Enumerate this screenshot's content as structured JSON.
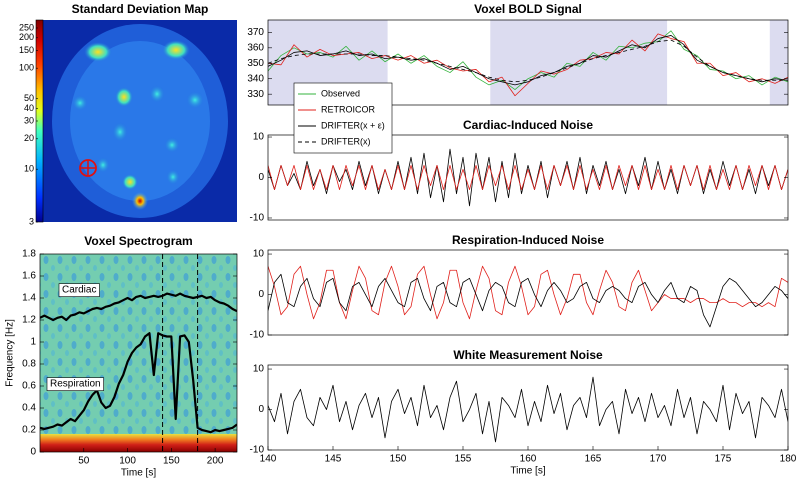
{
  "chart_data": [
    {
      "type": "image",
      "title": "Standard Deviation Map",
      "colorbar": {
        "log_scale": true,
        "clim": [
          3,
          300
        ],
        "cticks": [
          3,
          10,
          20,
          30,
          40,
          50,
          100,
          150,
          200,
          250
        ]
      }
    },
    {
      "type": "spectrogram",
      "title": "Voxel Spectrogram",
      "xlabel": "Time [s]",
      "ylabel": "Frequency [Hz]",
      "xlim": [
        0,
        225
      ],
      "xticks": [
        50,
        100,
        150,
        200
      ],
      "ylim": [
        0,
        1.8
      ],
      "yticks": [
        0,
        0.2,
        0.4,
        0.6,
        0.8,
        1,
        1.2,
        1.4,
        1.6,
        1.8
      ],
      "vlines": [
        140,
        180
      ],
      "x": [
        0,
        5,
        10,
        15,
        20,
        25,
        30,
        35,
        40,
        45,
        50,
        55,
        60,
        65,
        70,
        75,
        80,
        85,
        90,
        95,
        100,
        105,
        110,
        115,
        120,
        125,
        130,
        135,
        140,
        145,
        150,
        155,
        160,
        165,
        170,
        175,
        180,
        185,
        190,
        195,
        200,
        205,
        210,
        215,
        220,
        225
      ],
      "series": [
        {
          "name": "Cardiac",
          "color": "#000000",
          "values": [
            1.22,
            1.24,
            1.22,
            1.2,
            1.22,
            1.23,
            1.2,
            1.24,
            1.25,
            1.27,
            1.26,
            1.28,
            1.3,
            1.31,
            1.3,
            1.32,
            1.33,
            1.35,
            1.36,
            1.38,
            1.4,
            1.38,
            1.41,
            1.42,
            1.4,
            1.41,
            1.42,
            1.41,
            1.42,
            1.44,
            1.43,
            1.42,
            1.44,
            1.42,
            1.41,
            1.4,
            1.41,
            1.42,
            1.4,
            1.41,
            1.38,
            1.36,
            1.35,
            1.33,
            1.3,
            1.28
          ]
        },
        {
          "name": "Respiration",
          "color": "#000000",
          "values": [
            0.22,
            0.21,
            0.22,
            0.23,
            0.25,
            0.24,
            0.27,
            0.3,
            0.28,
            0.33,
            0.38,
            0.46,
            0.52,
            0.56,
            0.45,
            0.4,
            0.42,
            0.5,
            0.62,
            0.7,
            0.82,
            0.9,
            0.95,
            0.98,
            1.05,
            1.08,
            0.7,
            1.08,
            1.06,
            1.05,
            1.05,
            0.3,
            1.05,
            1.06,
            1.0,
            0.65,
            0.22,
            0.2,
            0.19,
            0.18,
            0.2,
            0.19,
            0.2,
            0.21,
            0.22,
            0.25
          ]
        }
      ]
    },
    {
      "type": "line",
      "title": "Voxel BOLD Signal",
      "legend": "lower-left",
      "xlim": [
        140,
        180
      ],
      "ylim": [
        323,
        378
      ],
      "yticks": [
        330,
        340,
        350,
        360,
        370
      ],
      "shaded_spans": [
        [
          140,
          149.2
        ],
        [
          157.1,
          170.7
        ],
        [
          178.6,
          180
        ]
      ],
      "shade_color": "#dcdcf0",
      "x": [
        140,
        141,
        142,
        143,
        144,
        145,
        146,
        147,
        148,
        149,
        150,
        151,
        152,
        153,
        154,
        155,
        156,
        157,
        158,
        159,
        160,
        161,
        162,
        163,
        164,
        165,
        166,
        167,
        168,
        169,
        170,
        171,
        172,
        173,
        174,
        175,
        176,
        177,
        178,
        179,
        180
      ],
      "series": [
        {
          "name": "Observed",
          "color": "#33b33c",
          "values": [
            345,
            355,
            360,
            356,
            357,
            354,
            361,
            352,
            358,
            351,
            356,
            350,
            355,
            348,
            344,
            351,
            341,
            336,
            339,
            333,
            340,
            344,
            341,
            350,
            348,
            357,
            352,
            361,
            360,
            363,
            364,
            371,
            359,
            355,
            346,
            345,
            340,
            342,
            336,
            341,
            338
          ]
        },
        {
          "name": "RETROICOR",
          "color": "#e0201b",
          "values": [
            350,
            349,
            362,
            354,
            359,
            355,
            356,
            357,
            353,
            355,
            352,
            355,
            350,
            352,
            347,
            345,
            346,
            338,
            341,
            329,
            337,
            345,
            343,
            346,
            352,
            353,
            357,
            356,
            365,
            358,
            369,
            366,
            364,
            350,
            350,
            342,
            344,
            338,
            340,
            337,
            341
          ]
        },
        {
          "name": "DRIFTER(x + ε)",
          "color": "#000000",
          "values": [
            348,
            352,
            357,
            358,
            355,
            356,
            358,
            355,
            356,
            353,
            354,
            352,
            353,
            350,
            346,
            348,
            344,
            340,
            338,
            336,
            338,
            342,
            344,
            348,
            350,
            355,
            354,
            358,
            362,
            360,
            366,
            368,
            362,
            352,
            348,
            344,
            342,
            340,
            338,
            340,
            339
          ]
        },
        {
          "name": "DRIFTER(x)",
          "color": "#000000",
          "dash": true,
          "values": [
            350,
            353,
            355,
            356,
            356,
            356,
            356,
            356,
            355,
            355,
            354,
            353,
            352,
            350,
            348,
            346,
            344,
            341,
            339,
            338,
            339,
            341,
            344,
            347,
            350,
            353,
            355,
            357,
            359,
            361,
            364,
            365,
            361,
            354,
            348,
            344,
            342,
            340,
            339,
            339,
            339
          ]
        }
      ]
    },
    {
      "type": "line",
      "title": "Cardiac-Induced Noise",
      "xlim": [
        140,
        180
      ],
      "ylim": [
        -10.5,
        10.5
      ],
      "yticks": [
        -10,
        0,
        10
      ],
      "x": [
        140,
        140.5,
        141,
        141.5,
        142,
        142.5,
        143,
        143.5,
        144,
        144.5,
        145,
        145.5,
        146,
        146.5,
        147,
        147.5,
        148,
        148.5,
        149,
        149.5,
        150,
        150.5,
        151,
        151.5,
        152,
        152.5,
        153,
        153.5,
        154,
        154.5,
        155,
        155.5,
        156,
        156.5,
        157,
        157.5,
        158,
        158.5,
        159,
        159.5,
        160,
        160.5,
        161,
        161.5,
        162,
        162.5,
        163,
        163.5,
        164,
        164.5,
        165,
        165.5,
        166,
        166.5,
        167,
        167.5,
        168,
        168.5,
        169,
        169.5,
        170,
        170.5,
        171,
        171.5,
        172,
        172.5,
        173,
        173.5,
        174,
        174.5,
        175,
        175.5,
        176,
        176.5,
        177,
        177.5,
        178,
        178.5,
        179,
        179.5,
        180
      ],
      "series": [
        {
          "name": "DRIFTER(x + ε)",
          "color": "#000000",
          "values": [
            2,
            -3,
            3,
            -2,
            1,
            -3,
            4,
            -2,
            2,
            -4,
            3,
            -1,
            2,
            -3,
            4,
            -2,
            3,
            -4,
            2,
            -3,
            4,
            -3,
            5,
            -4,
            6,
            -5,
            3,
            -6,
            7,
            -4,
            5,
            -7,
            6,
            -3,
            5,
            -6,
            4,
            -5,
            6,
            -4,
            3,
            -3,
            4,
            -5,
            3,
            -2,
            4,
            -3,
            5,
            -4,
            3,
            -2,
            4,
            -3,
            2,
            -4,
            3,
            -2,
            5,
            -3,
            4,
            -3,
            2,
            -4,
            3,
            -2,
            3,
            -4,
            2,
            -3,
            4,
            -2,
            3,
            -3,
            2,
            -4,
            3,
            -2,
            3,
            -3,
            2
          ]
        },
        {
          "name": "RETROICOR",
          "color": "#e0201b",
          "values": [
            3,
            -3,
            3,
            -2,
            3,
            -3,
            3,
            -3,
            2,
            -3,
            3,
            -3,
            3,
            -2,
            3,
            -3,
            3,
            -3,
            2,
            -3,
            3,
            -3,
            3,
            -3,
            3,
            -2,
            3,
            -3,
            3,
            -3,
            2,
            -3,
            3,
            -3,
            3,
            -2,
            3,
            -3,
            3,
            -3,
            2,
            -3,
            3,
            -3,
            3,
            -2,
            3,
            -3,
            3,
            -3,
            2,
            -3,
            3,
            -3,
            3,
            -2,
            3,
            -3,
            3,
            -3,
            2,
            -3,
            3,
            -3,
            3,
            -2,
            3,
            -3,
            3,
            -3,
            2,
            -3,
            3,
            -3,
            3,
            -2,
            3,
            -3,
            3,
            -3,
            2
          ]
        }
      ]
    },
    {
      "type": "line",
      "title": "Respiration-Induced Noise",
      "xlim": [
        140,
        180
      ],
      "ylim": [
        -10,
        11
      ],
      "yticks": [
        -10,
        0,
        10
      ],
      "x": [
        140,
        140.5,
        141,
        141.5,
        142,
        142.5,
        143,
        143.5,
        144,
        144.5,
        145,
        145.5,
        146,
        146.5,
        147,
        147.5,
        148,
        148.5,
        149,
        149.5,
        150,
        150.5,
        151,
        151.5,
        152,
        152.5,
        153,
        153.5,
        154,
        154.5,
        155,
        155.5,
        156,
        156.5,
        157,
        157.5,
        158,
        158.5,
        159,
        159.5,
        160,
        160.5,
        161,
        161.5,
        162,
        162.5,
        163,
        163.5,
        164,
        164.5,
        165,
        165.5,
        166,
        166.5,
        167,
        167.5,
        168,
        168.5,
        169,
        169.5,
        170,
        170.5,
        171,
        171.5,
        172,
        172.5,
        173,
        173.5,
        174,
        174.5,
        175,
        175.5,
        176,
        176.5,
        177,
        177.5,
        178,
        178.5,
        179,
        179.5,
        180
      ],
      "series": [
        {
          "name": "RETROICOR",
          "color": "#e0201b",
          "values": [
            7,
            2,
            -5,
            -3,
            5,
            7,
            0,
            -6,
            -2,
            6,
            6,
            -2,
            -6,
            1,
            7,
            4,
            -4,
            -5,
            3,
            7,
            2,
            -5,
            -3,
            5,
            7,
            0,
            -6,
            -2,
            6,
            6,
            -2,
            -6,
            1,
            7,
            4,
            -4,
            -5,
            3,
            7,
            2,
            -5,
            -3,
            5,
            6,
            0,
            -5,
            -1,
            5,
            5,
            -2,
            -5,
            1,
            6,
            3,
            -3,
            -4,
            3,
            6,
            1,
            -4,
            -2,
            0,
            -1,
            -1,
            -1,
            -2,
            -1,
            -1,
            -2,
            -2,
            -1,
            -2,
            -2,
            -3,
            -2,
            -2,
            -3,
            -2,
            -3,
            4,
            3
          ]
        },
        {
          "name": "DRIFTER(x + ε)",
          "color": "#000000",
          "values": [
            -4,
            3,
            5,
            -2,
            -3,
            2,
            4,
            -1,
            -3,
            3,
            4,
            -2,
            -4,
            2,
            3,
            0,
            -3,
            2,
            4,
            1,
            -2,
            -3,
            3,
            4,
            -1,
            -4,
            2,
            3,
            -2,
            -3,
            3,
            4,
            0,
            -4,
            1,
            3,
            2,
            -2,
            -3,
            3,
            4,
            0,
            -3,
            1,
            3,
            1,
            -2,
            -1,
            2,
            3,
            -1,
            -2,
            1,
            2,
            1,
            -1,
            -2,
            2,
            3,
            0,
            -2,
            1,
            3,
            -1,
            -2,
            2,
            1,
            -5,
            -8,
            -3,
            2,
            4,
            3,
            1,
            -1,
            -3,
            -2,
            0,
            2,
            1,
            -1
          ]
        }
      ]
    },
    {
      "type": "line",
      "title": "White Measurement Noise",
      "xlabel": "Time [s]",
      "xlim": [
        140,
        180
      ],
      "xticks": [
        140,
        145,
        150,
        155,
        160,
        165,
        170,
        175,
        180
      ],
      "ylim": [
        -10,
        11
      ],
      "yticks": [
        -10,
        0,
        10
      ],
      "x": [
        140,
        140.5,
        141,
        141.5,
        142,
        142.5,
        143,
        143.5,
        144,
        144.5,
        145,
        145.5,
        146,
        146.5,
        147,
        147.5,
        148,
        148.5,
        149,
        149.5,
        150,
        150.5,
        151,
        151.5,
        152,
        152.5,
        153,
        153.5,
        154,
        154.5,
        155,
        155.5,
        156,
        156.5,
        157,
        157.5,
        158,
        158.5,
        159,
        159.5,
        160,
        160.5,
        161,
        161.5,
        162,
        162.5,
        163,
        163.5,
        164,
        164.5,
        165,
        165.5,
        166,
        166.5,
        167,
        167.5,
        168,
        168.5,
        169,
        169.5,
        170,
        170.5,
        171,
        171.5,
        172,
        172.5,
        173,
        173.5,
        174,
        174.5,
        175,
        175.5,
        176,
        176.5,
        177,
        177.5,
        178,
        178.5,
        179,
        179.5,
        180
      ],
      "series": [
        {
          "name": "DRIFTER(x + ε)",
          "color": "#000000",
          "values": [
            1,
            -3,
            4,
            -6,
            2,
            5,
            -2,
            -4,
            3,
            0,
            6,
            -3,
            2,
            -5,
            1,
            4,
            -2,
            3,
            -7,
            2,
            5,
            -1,
            3,
            -4,
            6,
            -2,
            1,
            -5,
            3,
            7,
            -3,
            0,
            4,
            -6,
            2,
            -8,
            3,
            1,
            -2,
            5,
            -4,
            2,
            -3,
            6,
            -1,
            4,
            -5,
            1,
            3,
            -2,
            8,
            -4,
            0,
            2,
            -6,
            5,
            -1,
            3,
            -3,
            4,
            -2,
            1,
            -4,
            5,
            -2,
            3,
            -6,
            2,
            0,
            -3,
            6,
            -5,
            4,
            -1,
            2,
            -7,
            3,
            1,
            -2,
            5,
            -3
          ]
        }
      ]
    }
  ]
}
